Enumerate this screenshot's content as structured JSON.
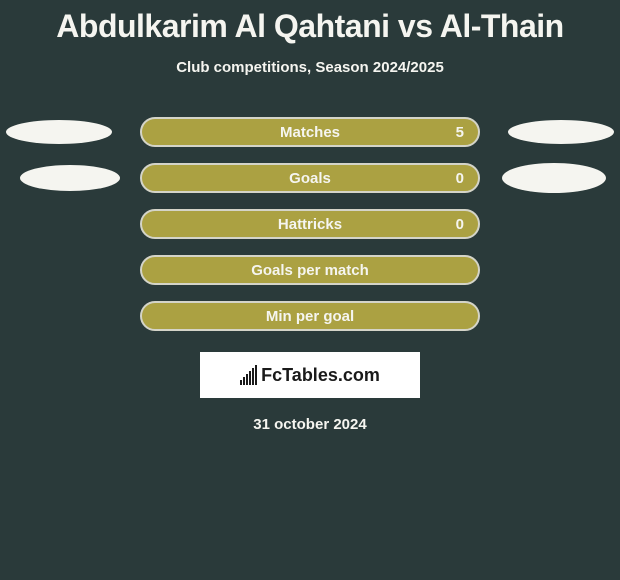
{
  "title": "Abdulkarim Al Qahtani vs Al-Thain",
  "subtitle": "Club competitions, Season 2024/2025",
  "stats": [
    {
      "label": "Matches",
      "value": "5",
      "show_left_ellipse": true,
      "show_right_ellipse": true,
      "left_ellipse_class": "ellipse-left",
      "right_ellipse_class": "ellipse-right"
    },
    {
      "label": "Goals",
      "value": "0",
      "show_left_ellipse": true,
      "show_right_ellipse": true,
      "left_ellipse_class": "small",
      "right_ellipse_class": "small-right"
    },
    {
      "label": "Hattricks",
      "value": "0",
      "show_left_ellipse": false,
      "show_right_ellipse": false
    },
    {
      "label": "Goals per match",
      "value": "",
      "show_left_ellipse": false,
      "show_right_ellipse": false
    },
    {
      "label": "Min per goal",
      "value": "",
      "show_left_ellipse": false,
      "show_right_ellipse": false
    }
  ],
  "logo_text": "FcTables.com",
  "date": "31 october 2024",
  "colors": {
    "background": "#2a3a3a",
    "text_light": "#f5f5f0",
    "bar_fill": "#aba142",
    "bar_border": "#d4d4c8",
    "logo_bg": "#ffffff",
    "logo_fg": "#1a1a1a"
  }
}
